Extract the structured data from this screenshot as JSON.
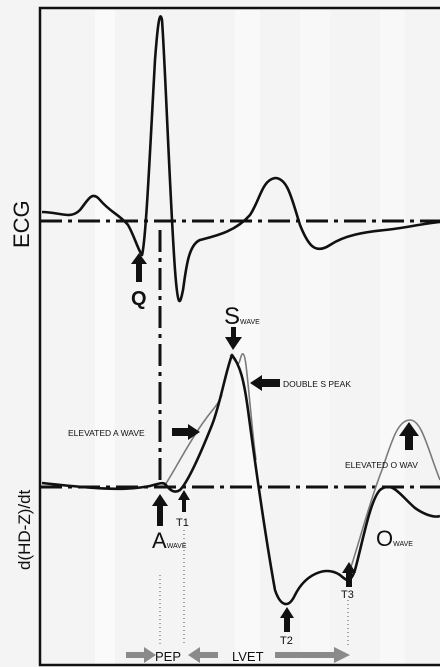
{
  "axes": {
    "ecg_label": "ECG",
    "impedance_label": "d(HD-Z)/dt"
  },
  "points": {
    "q": "Q",
    "s_main": "S",
    "s_sub": "WAVE",
    "a_main": "A",
    "a_sub": "WAVE",
    "o_main": "O",
    "o_sub": "WAVE",
    "t1": "T1",
    "t2": "T2",
    "t3": "T3"
  },
  "annotations": {
    "double_s_peak": "DOUBLE S PEAK",
    "elevated_a_wave": "ELEVATED A WAVE",
    "elevated_o_wave": "ELEVATED O WAV"
  },
  "intervals": {
    "pep": "PEP",
    "lvet": "LVET"
  },
  "colors": {
    "background": "#f4f4f4",
    "ink": "#111111",
    "thin_curve": "#7a7a7a",
    "interval_arrow": "#8a8a8a",
    "grid_stripe": "#ffffff"
  }
}
